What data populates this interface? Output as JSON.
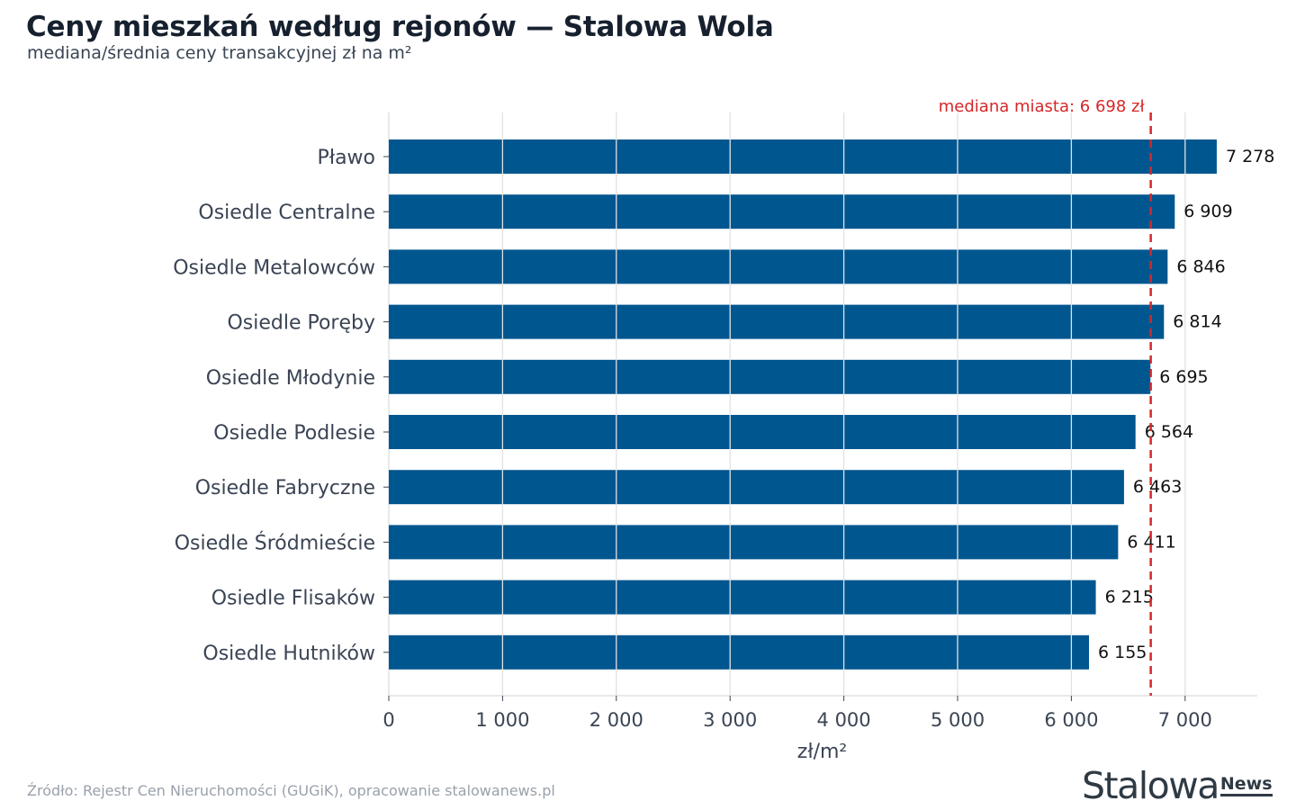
{
  "header": {
    "title": "Ceny mieszkań według rejonów — Stalowa Wola",
    "subtitle": "mediana/średnia ceny transakcyjnej zł na m²"
  },
  "footer": {
    "source": "Źródło: Rejestr Cen Nieruchomości (GUGiK), opracowanie stalowanews.pl"
  },
  "logo": {
    "main": "Stalowa",
    "news": "News"
  },
  "chart_data": {
    "type": "bar",
    "orientation": "horizontal",
    "title": "Ceny mieszkań według rejonów — Stalowa Wola",
    "subtitle": "mediana/średnia ceny transakcyjnej zł na m²",
    "xlabel": "zł/m²",
    "ylabel": "",
    "xlim": [
      0,
      7650
    ],
    "xticks": [
      0,
      1000,
      2000,
      3000,
      4000,
      5000,
      6000,
      7000
    ],
    "xtick_labels": [
      "0",
      "1 000",
      "2 000",
      "3 000",
      "4 000",
      "5 000",
      "6 000",
      "7 000"
    ],
    "grid": true,
    "categories": [
      "Pławo",
      "Osiedle Centralne",
      "Osiedle Metalowców",
      "Osiedle Poręby",
      "Osiedle Młodynie",
      "Osiedle Podlesie",
      "Osiedle Fabryczne",
      "Osiedle Śródmieście",
      "Osiedle Flisaków",
      "Osiedle Hutników"
    ],
    "values": [
      7278,
      6909,
      6846,
      6814,
      6695,
      6564,
      6463,
      6411,
      6215,
      6155
    ],
    "value_labels": [
      "7 278",
      "6 909",
      "6 846",
      "6 814",
      "6 695",
      "6 564",
      "6 463",
      "6 411",
      "6 215",
      "6 155"
    ],
    "reference_line": {
      "value": 6698,
      "label": "mediana miasta: 6 698 zł",
      "color": "#d62728",
      "style": "dashed"
    },
    "colors": {
      "bar": "#00568f",
      "grid": "#e2e2e2",
      "axis_text": "#3a4454"
    }
  }
}
